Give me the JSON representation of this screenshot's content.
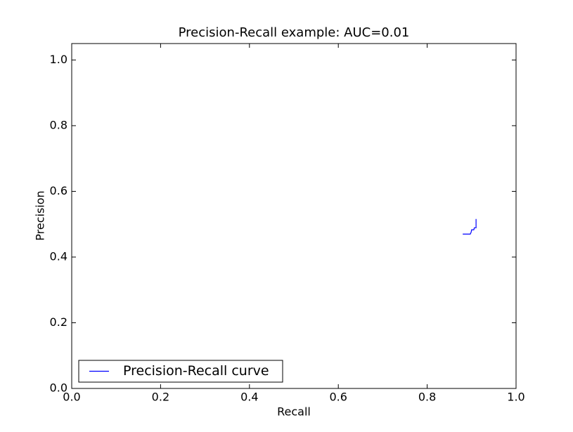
{
  "chart_data": {
    "type": "line",
    "title": "Precision-Recall example: AUC=0.01",
    "x_label": "Recall",
    "y_label": "Precision",
    "x": [
      0.88,
      0.897,
      0.899,
      0.9,
      0.905,
      0.906,
      0.91,
      0.91
    ],
    "series": [
      {
        "name": "Precision-Recall curve",
        "color": "#0000ff",
        "values": [
          0.47,
          0.47,
          0.476,
          0.483,
          0.483,
          0.489,
          0.489,
          0.516
        ]
      }
    ],
    "xlim": [
      0,
      1
    ],
    "ylim": [
      0,
      1.05
    ],
    "xticks": [
      {
        "value": 0,
        "label": "0.0"
      },
      {
        "value": 0.2,
        "label": "0.2"
      },
      {
        "value": 0.4,
        "label": "0.4"
      },
      {
        "value": 0.6,
        "label": "0.6"
      },
      {
        "value": 0.8,
        "label": "0.8"
      },
      {
        "value": 1,
        "label": "1.0"
      }
    ],
    "yticks": [
      {
        "value": 0,
        "label": "0.0"
      },
      {
        "value": 0.2,
        "label": "0.2"
      },
      {
        "value": 0.4,
        "label": "0.4"
      },
      {
        "value": 0.6,
        "label": "0.6"
      },
      {
        "value": 0.8,
        "label": "0.8"
      },
      {
        "value": 1,
        "label": "1.0"
      }
    ],
    "grid": false,
    "legend": "lower left"
  }
}
